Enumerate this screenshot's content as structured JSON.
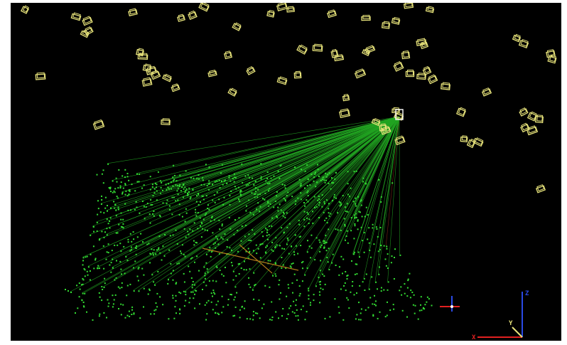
{
  "viewer": {
    "background_color": "#000000",
    "border_color": "#ffffff"
  },
  "colors": {
    "camera": "#e6e27a",
    "point": "#33dd33",
    "ray": "#22a422",
    "ray_dim": "#8a2a1a",
    "highlight_line": "#b07a1a",
    "axis_x": "#e02020",
    "axis_y": "#e6e27a",
    "axis_z": "#2a4ae6",
    "marker_v": "#2a4ae6",
    "marker_h": "#e02020"
  },
  "axes_gizmo": {
    "x_label": "X",
    "y_label": "Y",
    "z_label": "Z"
  },
  "icons": {
    "camera": "camera-frustum-icon",
    "origin": "origin-marker-icon",
    "axes": "axes-gizmo-icon"
  }
}
